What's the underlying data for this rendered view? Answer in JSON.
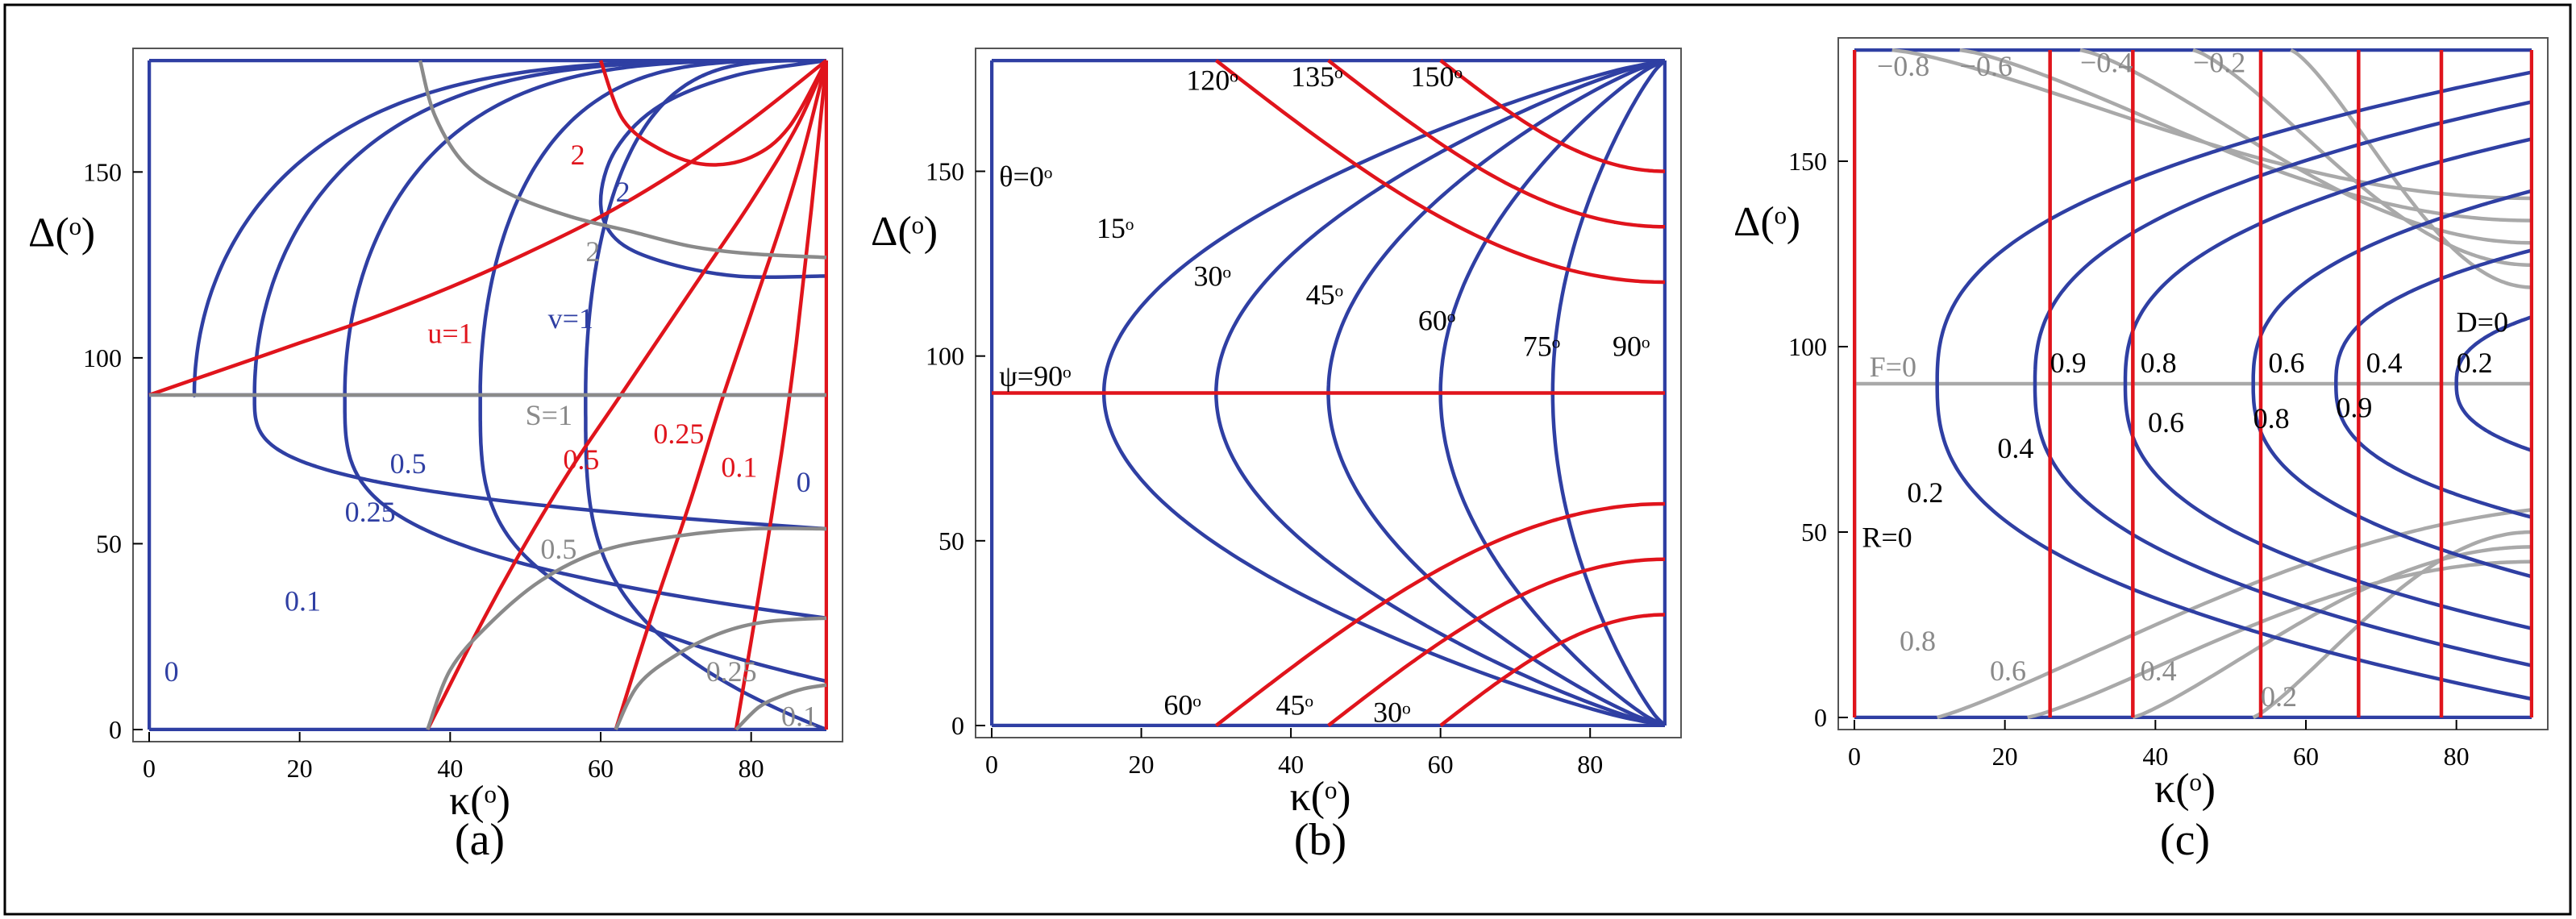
{
  "colors": {
    "blue": "#2f3fa3",
    "red": "#e0141c",
    "gray": "#8a8a8a",
    "lightgray": "#a9a9a9"
  },
  "axis": {
    "xlabel": "κ(ᵒ)",
    "ylabel": "Δ(ᵒ)",
    "xticks": [
      0,
      20,
      40,
      60,
      80
    ],
    "yticks": [
      0,
      50,
      100,
      150
    ]
  },
  "chart_data": [
    {
      "type": "line",
      "panel_label": "(a)",
      "xlim": [
        0,
        90
      ],
      "ylim": [
        0,
        180
      ],
      "series": [
        {
          "family": "blue-v",
          "points_note": "",
          "curves": [
            {
              "x": [
                0,
                0
              ],
              "y": [
                0,
                180
              ]
            },
            {
              "kmin": 6,
              "yend": 90
            },
            {
              "kmin": 14,
              "yend": 54
            },
            {
              "kmin": 26,
              "yend": 30
            },
            {
              "kmin": 44,
              "yend": 13
            },
            {
              "kmin": 58,
              "yend": 0
            }
          ]
        },
        {
          "family": "red-u",
          "curves": [
            {
              "x": [
                0,
                10,
                20,
                30,
                40,
                50,
                60,
                70,
                80,
                90
              ],
              "y": [
                90,
                97,
                104,
                111,
                119,
                128,
                138,
                150,
                164,
                180
              ]
            },
            {
              "x": [
                37,
                44,
                50,
                56,
                62,
                68,
                74,
                80,
                86,
                90
              ],
              "y": [
                0,
                28,
                50,
                70,
                88,
                106,
                124,
                142,
                162,
                180
              ]
            },
            {
              "x": [
                62,
                67,
                72,
                76,
                80,
                84,
                87,
                90
              ],
              "y": [
                0,
                32,
                62,
                88,
                112,
                136,
                156,
                180
              ]
            },
            {
              "x": [
                78,
                81,
                84,
                86,
                88,
                90
              ],
              "y": [
                0,
                36,
                74,
                104,
                140,
                180
              ]
            },
            {
              "x": [
                90,
                90
              ],
              "y": [
                0,
                180
              ]
            },
            {
              "x": [
                60,
                63,
                68,
                74,
                80,
                85,
                90
              ],
              "y": [
                180,
                164,
                156,
                152,
                154,
                162,
                180
              ]
            }
          ]
        },
        {
          "family": "gray-S",
          "curves": [
            {
              "x": [
                0,
                90
              ],
              "y": [
                90,
                90
              ]
            },
            {
              "x": [
                37,
                40,
                45,
                52,
                60,
                70,
                80,
                90
              ],
              "y": [
                0,
                16,
                28,
                40,
                48,
                52,
                54,
                54
              ]
            },
            {
              "x": [
                62,
                65,
                70,
                76,
                82,
                90
              ],
              "y": [
                0,
                12,
                20,
                26,
                29,
                30
              ]
            },
            {
              "x": [
                78,
                81,
                84,
                87,
                90
              ],
              "y": [
                0,
                6,
                9,
                11,
                12
              ]
            },
            {
              "x": [
                36,
                38,
                42,
                48,
                56,
                64,
                72,
                80,
                90
              ],
              "y": [
                180,
                165,
                152,
                144,
                138,
                134,
                130,
                128,
                127
              ]
            }
          ]
        }
      ],
      "annotations": [
        {
          "text": "2",
          "x": 56,
          "y": 152,
          "color": "red"
        },
        {
          "text": "2",
          "x": 62,
          "y": 142,
          "color": "blue"
        },
        {
          "text": "2",
          "x": 58,
          "y": 126,
          "color": "gray"
        },
        {
          "text": "u=1",
          "x": 37,
          "y": 104,
          "color": "red"
        },
        {
          "text": "v=1",
          "x": 53,
          "y": 108,
          "color": "blue"
        },
        {
          "text": "S=1",
          "x": 50,
          "y": 82,
          "color": "gray"
        },
        {
          "text": "0.5",
          "x": 32,
          "y": 69,
          "color": "blue"
        },
        {
          "text": "0.5",
          "x": 55,
          "y": 70,
          "color": "red"
        },
        {
          "text": "0.25",
          "x": 67,
          "y": 77,
          "color": "red"
        },
        {
          "text": "0.1",
          "x": 76,
          "y": 68,
          "color": "red"
        },
        {
          "text": "0",
          "x": 86,
          "y": 64,
          "color": "blue"
        },
        {
          "text": "0.25",
          "x": 26,
          "y": 56,
          "color": "blue"
        },
        {
          "text": "0.5",
          "x": 52,
          "y": 46,
          "color": "gray"
        },
        {
          "text": "0.1",
          "x": 18,
          "y": 32,
          "color": "blue"
        },
        {
          "text": "0.25",
          "x": 74,
          "y": 13,
          "color": "gray"
        },
        {
          "text": "0.1",
          "x": 84,
          "y": 1,
          "color": "gray"
        },
        {
          "text": "0",
          "x": 2,
          "y": 13,
          "color": "blue"
        }
      ]
    },
    {
      "type": "line",
      "panel_label": "(b)",
      "xlim": [
        0,
        90
      ],
      "ylim": [
        0,
        180
      ],
      "series": [
        {
          "family": "blue-theta",
          "kmins": [
            0,
            15,
            30,
            45,
            60,
            75,
            90
          ]
        },
        {
          "family": "red-psi",
          "curves": [
            {
              "x": [
                0,
                90
              ],
              "y": [
                90,
                90
              ]
            },
            {
              "x": [
                30,
                90
              ],
              "y": [
                180,
                120
              ],
              "shape": "upper"
            },
            {
              "x": [
                45,
                90
              ],
              "y": [
                180,
                135
              ],
              "shape": "upper"
            },
            {
              "x": [
                60,
                90
              ],
              "y": [
                180,
                150
              ],
              "shape": "upper"
            },
            {
              "x": [
                30,
                90
              ],
              "y": [
                0,
                60
              ],
              "shape": "lower"
            },
            {
              "x": [
                45,
                90
              ],
              "y": [
                0,
                45
              ],
              "shape": "lower"
            },
            {
              "x": [
                60,
                90
              ],
              "y": [
                0,
                30
              ],
              "shape": "lower"
            }
          ]
        }
      ],
      "annotations": [
        {
          "text": "120ᵒ",
          "x": 26,
          "y": 172,
          "color": "black"
        },
        {
          "text": "135ᵒ",
          "x": 40,
          "y": 173,
          "color": "black"
        },
        {
          "text": "150ᵒ",
          "x": 56,
          "y": 173,
          "color": "black"
        },
        {
          "text": "θ=0ᵒ",
          "x": 1,
          "y": 146,
          "color": "black"
        },
        {
          "text": "15ᵒ",
          "x": 14,
          "y": 132,
          "color": "black"
        },
        {
          "text": "30ᵒ",
          "x": 27,
          "y": 119,
          "color": "black"
        },
        {
          "text": "45ᵒ",
          "x": 42,
          "y": 114,
          "color": "black"
        },
        {
          "text": "60ᵒ",
          "x": 57,
          "y": 107,
          "color": "black"
        },
        {
          "text": "75ᵒ",
          "x": 71,
          "y": 100,
          "color": "black"
        },
        {
          "text": "90ᵒ",
          "x": 83,
          "y": 100,
          "color": "black"
        },
        {
          "text": "ψ=90ᵒ",
          "x": 1,
          "y": 92,
          "color": "black"
        },
        {
          "text": "60ᵒ",
          "x": 23,
          "y": 3,
          "color": "black"
        },
        {
          "text": "45ᵒ",
          "x": 38,
          "y": 3,
          "color": "black"
        },
        {
          "text": "30ᵒ",
          "x": 51,
          "y": 1,
          "color": "black"
        }
      ]
    },
    {
      "type": "line",
      "panel_label": "(c)",
      "xlim": [
        0,
        90
      ],
      "ylim": [
        0,
        180
      ],
      "series": [
        {
          "family": "blue-D",
          "curves": [
            {
              "kmin": 11,
              "yend": [
                5,
                174
              ]
            },
            {
              "kmin": 24,
              "yend": [
                14,
                166
              ]
            },
            {
              "kmin": 36,
              "yend": [
                24,
                156
              ]
            },
            {
              "kmin": 53,
              "yend": [
                38,
                142
              ]
            },
            {
              "kmin": 64,
              "yend": [
                54,
                126
              ]
            },
            {
              "kmin": 80,
              "yend": [
                72,
                108
              ]
            }
          ]
        },
        {
          "family": "red-R",
          "x": [
            0,
            26,
            37,
            54,
            67,
            78,
            90
          ]
        },
        {
          "family": "gray-F",
          "curves": [
            {
              "x": [
                0,
                90
              ],
              "y": [
                90,
                90
              ]
            }
          ]
        }
      ],
      "annotations": [
        {
          "text": "−0.8",
          "x": 3,
          "y": 173,
          "color": "gray"
        },
        {
          "text": "−0.6",
          "x": 14,
          "y": 173,
          "color": "gray"
        },
        {
          "text": "−0.4",
          "x": 30,
          "y": 174,
          "color": "gray"
        },
        {
          "text": "−0.2",
          "x": 45,
          "y": 174,
          "color": "gray"
        },
        {
          "text": "F=0",
          "x": 2,
          "y": 92,
          "color": "gray"
        },
        {
          "text": "0.9",
          "x": 26,
          "y": 93,
          "color": "black"
        },
        {
          "text": "0.8",
          "x": 38,
          "y": 93,
          "color": "black"
        },
        {
          "text": "0.6",
          "x": 55,
          "y": 93,
          "color": "black"
        },
        {
          "text": "0.4",
          "x": 68,
          "y": 93,
          "color": "black"
        },
        {
          "text": "0.2",
          "x": 80,
          "y": 93,
          "color": "black"
        },
        {
          "text": "D=0",
          "x": 80,
          "y": 104,
          "color": "black"
        },
        {
          "text": "0.6",
          "x": 39,
          "y": 77,
          "color": "black"
        },
        {
          "text": "0.8",
          "x": 53,
          "y": 78,
          "color": "black"
        },
        {
          "text": "0.9",
          "x": 64,
          "y": 81,
          "color": "black"
        },
        {
          "text": "0.4",
          "x": 19,
          "y": 70,
          "color": "black"
        },
        {
          "text": "0.2",
          "x": 7,
          "y": 58,
          "color": "black"
        },
        {
          "text": "R=0",
          "x": 1,
          "y": 46,
          "color": "black"
        },
        {
          "text": "0.8",
          "x": 6,
          "y": 18,
          "color": "gray"
        },
        {
          "text": "0.6",
          "x": 18,
          "y": 10,
          "color": "gray"
        },
        {
          "text": "0.4",
          "x": 38,
          "y": 10,
          "color": "gray"
        },
        {
          "text": "0.2",
          "x": 54,
          "y": 3,
          "color": "gray"
        }
      ]
    }
  ]
}
